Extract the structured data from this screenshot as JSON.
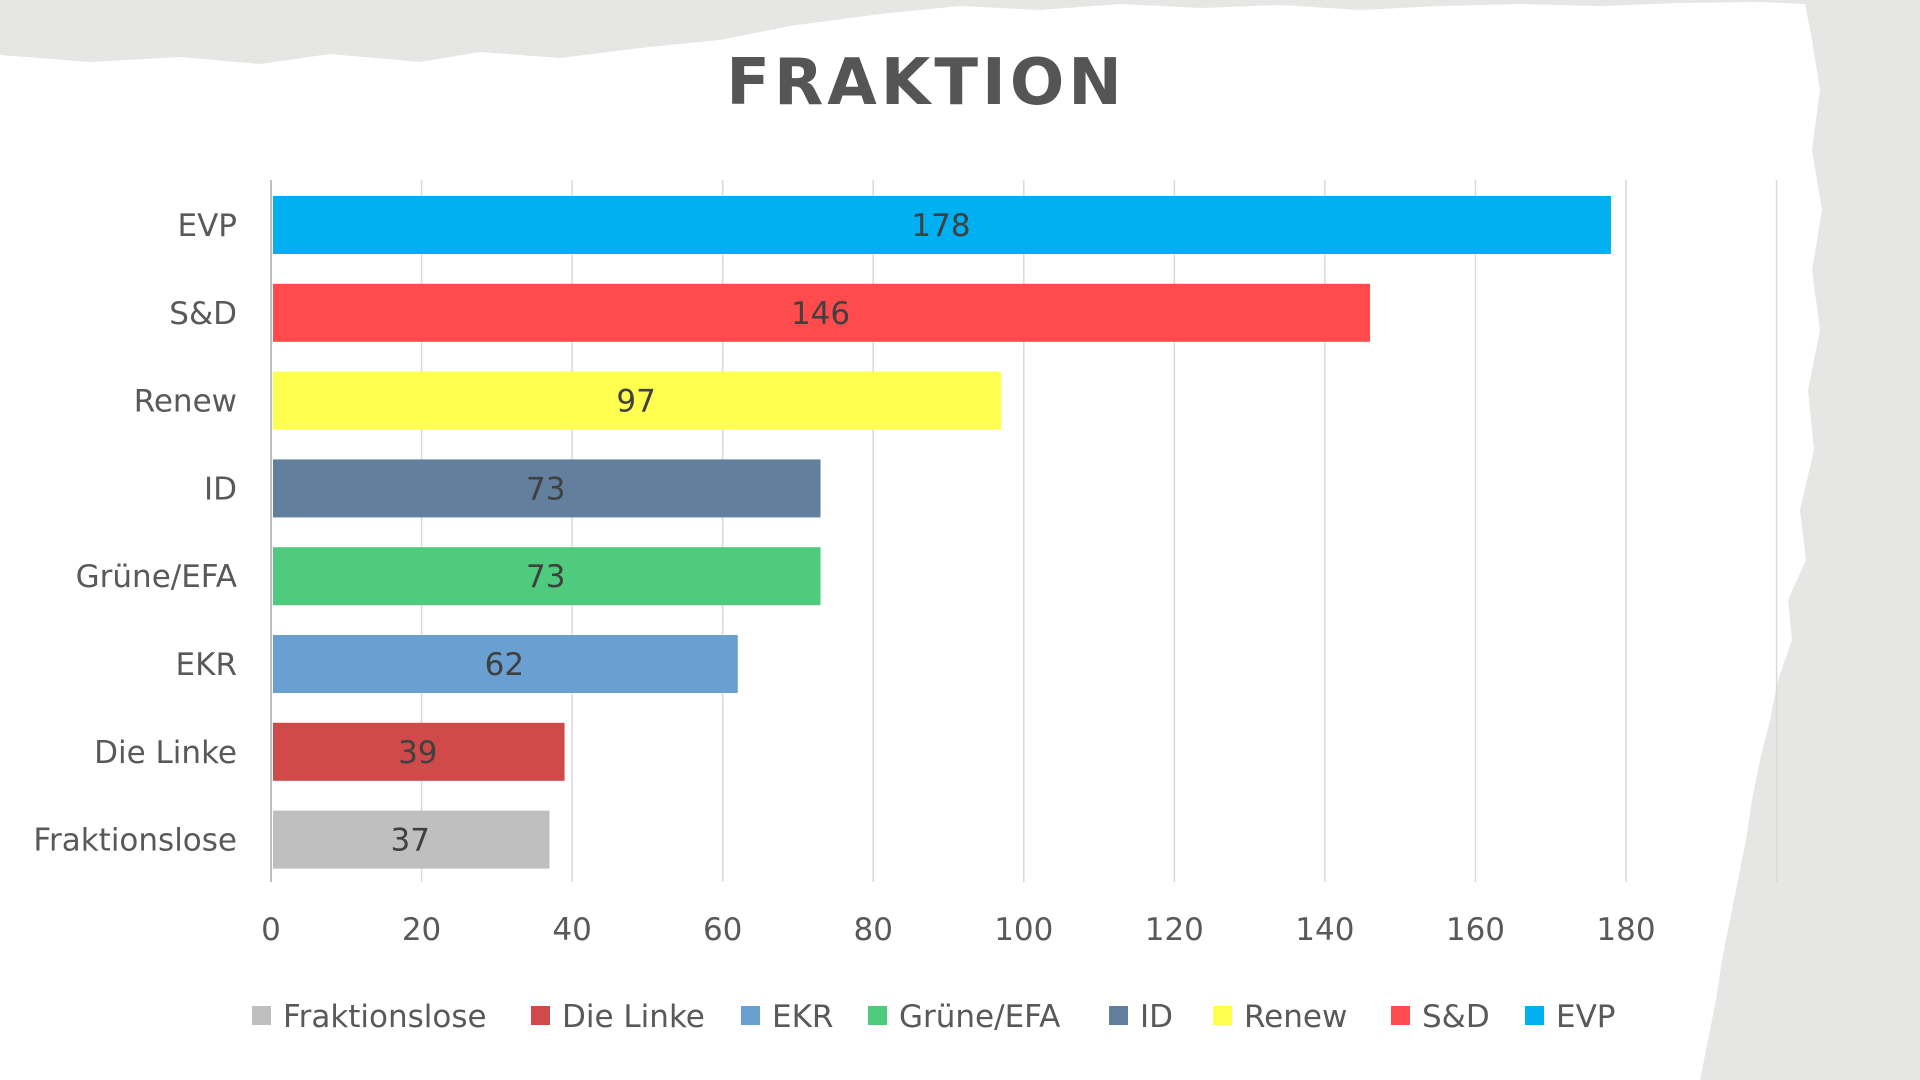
{
  "chart_data": {
    "type": "bar",
    "orientation": "horizontal",
    "title": "FRAKTION",
    "categories": [
      "EVP",
      "S&D",
      "Renew",
      "ID",
      "Grüne/EFA",
      "EKR",
      "Die Linke",
      "Fraktionslose"
    ],
    "values": [
      178,
      146,
      97,
      73,
      73,
      62,
      39,
      37
    ],
    "data_labels": [
      "178",
      "146",
      "97",
      "73",
      "73",
      "62",
      "39",
      "37"
    ],
    "colors": [
      "#00b0f0",
      "#ff4b4b",
      "#ffff4f",
      "#627f9e",
      "#4ecb7c",
      "#6a9fd2",
      "#d14a4a",
      "#bfbfbf"
    ],
    "xlim": [
      0,
      200
    ],
    "x_ticks": [
      0,
      20,
      40,
      60,
      80,
      100,
      120,
      140,
      160,
      180
    ],
    "x_tick_labels": [
      "0",
      "20",
      "40",
      "60",
      "80",
      "100",
      "120",
      "140",
      "160",
      "180"
    ],
    "grid": true,
    "legend_position": "bottom",
    "legend": [
      {
        "label": "Fraktionslose",
        "color": "#bfbfbf"
      },
      {
        "label": "Die Linke",
        "color": "#d14a4a"
      },
      {
        "label": "EKR",
        "color": "#6a9fd2"
      },
      {
        "label": "Grüne/EFA",
        "color": "#4ecb7c"
      },
      {
        "label": "ID",
        "color": "#627f9e"
      },
      {
        "label": "Renew",
        "color": "#ffff4f"
      },
      {
        "label": "S&D",
        "color": "#ff4b4b"
      },
      {
        "label": "EVP",
        "color": "#00b0f0"
      }
    ]
  }
}
